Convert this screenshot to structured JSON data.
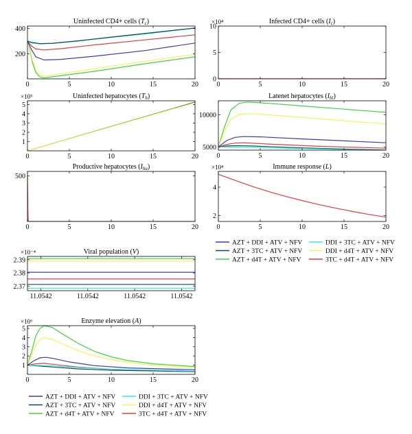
{
  "figure": {
    "legend_top": [
      {
        "label": "AZT + DDI + ATV + NFV",
        "color": "#3a3ab8"
      },
      {
        "label": "AZT + 3TC + ATV + NFV",
        "color": "#0c4b4b"
      },
      {
        "label": "AZT + d4T + ATV + NFV",
        "color": "#3ed43e"
      },
      {
        "label": "DDI + 3TC + ATV + NFV",
        "color": "#2ee8e8"
      },
      {
        "label": "DDI + d4T + ATV + NFV",
        "color": "#f4f45a"
      },
      {
        "label": "3TC + d4T + ATV + NFV",
        "color": "#e03c3c"
      }
    ],
    "legend_bottom": [
      {
        "label": "AZT + DDI + ATV + NFV",
        "color": "#3a3ab8"
      },
      {
        "label": "AZT + 3TC + ATV + NFV",
        "color": "#0c4b4b"
      },
      {
        "label": "AZT + d4T + ATV + NFV",
        "color": "#3ed43e"
      },
      {
        "label": "DDI + 3TC + ATV + NFV",
        "color": "#2ee8e8"
      },
      {
        "label": "DDI + d4T + ATV + NFV",
        "color": "#f4f45a"
      },
      {
        "label": "3TC + d4T + ATV + NFV",
        "color": "#e03c3c"
      }
    ]
  },
  "chart_data": [
    {
      "id": "tc",
      "type": "line",
      "title": "Uninfected CD4+ cells (T_c)",
      "xlim": [
        0,
        20
      ],
      "ylim": [
        0,
        420
      ],
      "xticks": [
        "0",
        "5",
        "10",
        "15",
        "20"
      ],
      "yticks": [
        {
          "v": 200,
          "label": "200"
        },
        {
          "v": 400,
          "label": "400"
        }
      ],
      "multiplier": "",
      "series": [
        {
          "color": "#2ee8e8",
          "points": [
            [
              0,
              300
            ],
            [
              0.5,
              285
            ],
            [
              1.5,
              278
            ],
            [
              3,
              282
            ],
            [
              6,
              300
            ],
            [
              10,
              330
            ],
            [
              15,
              365
            ],
            [
              20,
              403
            ]
          ]
        },
        {
          "color": "#3ed43e",
          "points": [
            [
              0,
              300
            ],
            [
              0.3,
              230
            ],
            [
              0.6,
              130
            ],
            [
              1,
              50
            ],
            [
              1.5,
              15
            ],
            [
              2,
              8
            ],
            [
              4,
              25
            ],
            [
              8,
              60
            ],
            [
              14,
              120
            ],
            [
              20,
              175
            ]
          ]
        },
        {
          "color": "#f4f45a",
          "points": [
            [
              0,
              300
            ],
            [
              0.3,
              240
            ],
            [
              0.6,
              150
            ],
            [
              1,
              70
            ],
            [
              1.5,
              30
            ],
            [
              2,
              22
            ],
            [
              4,
              40
            ],
            [
              8,
              80
            ],
            [
              14,
              140
            ],
            [
              20,
              195
            ]
          ]
        },
        {
          "color": "#e03c3c",
          "points": [
            [
              0,
              300
            ],
            [
              0.5,
              260
            ],
            [
              1,
              238
            ],
            [
              2,
              230
            ],
            [
              4,
              240
            ],
            [
              8,
              270
            ],
            [
              14,
              310
            ],
            [
              20,
              350
            ]
          ]
        },
        {
          "color": "#3a3ab8",
          "points": [
            [
              0,
              300
            ],
            [
              0.5,
              230
            ],
            [
              1,
              175
            ],
            [
              2,
              150
            ],
            [
              4,
              155
            ],
            [
              8,
              180
            ],
            [
              14,
              225
            ],
            [
              20,
              285
            ]
          ]
        },
        {
          "color": "#0c4b4b",
          "points": [
            [
              0,
              300
            ],
            [
              0.5,
              290
            ],
            [
              1.5,
              280
            ],
            [
              3,
              283
            ],
            [
              6,
              302
            ],
            [
              10,
              332
            ],
            [
              15,
              368
            ],
            [
              20,
              405
            ]
          ]
        }
      ]
    },
    {
      "id": "ic",
      "type": "line",
      "title": "Infected CD4+ cells (I_c)",
      "xlim": [
        0,
        20
      ],
      "ylim": [
        0,
        10
      ],
      "xticks": [
        "0",
        "5",
        "10",
        "15",
        "20"
      ],
      "yticks": [
        {
          "v": 0,
          "label": "0"
        },
        {
          "v": 5,
          "label": "5"
        },
        {
          "v": 10,
          "label": "10"
        }
      ],
      "multiplier": "×10⁴",
      "series": [
        {
          "color": "#e03c3c",
          "points": [
            [
              0,
              0.03
            ],
            [
              20,
              0.03
            ]
          ]
        }
      ]
    },
    {
      "id": "th",
      "type": "line",
      "title": "Uninfected hepatocytes (T_h)",
      "xlim": [
        0,
        20
      ],
      "ylim": [
        0,
        5.4
      ],
      "xticks": [
        "0",
        "5",
        "10",
        "15",
        "20"
      ],
      "yticks": [
        {
          "v": 1,
          "label": "1"
        },
        {
          "v": 2,
          "label": "2"
        },
        {
          "v": 3,
          "label": "3"
        },
        {
          "v": 4,
          "label": "4"
        },
        {
          "v": 5,
          "label": "5"
        }
      ],
      "multiplier": "×10⁵",
      "series": [
        {
          "color": "#0c4b4b",
          "points": [
            [
              0,
              0
            ],
            [
              20,
              5.25
            ]
          ]
        },
        {
          "color": "#f4f45a",
          "points": [
            [
              0,
              0
            ],
            [
              20,
              5.2
            ]
          ]
        }
      ]
    },
    {
      "id": "hl",
      "type": "line",
      "title": "Latenet hepatocytes (I_hl)",
      "xlim": [
        0,
        20
      ],
      "ylim": [
        4500,
        12200
      ],
      "xticks": [
        "0",
        "5",
        "10",
        "15",
        "20"
      ],
      "yticks": [
        {
          "v": 5000,
          "label": "5000"
        },
        {
          "v": 10000,
          "label": "10000"
        }
      ],
      "multiplier": "",
      "series": [
        {
          "color": "#3ed43e",
          "points": [
            [
              0,
              5000
            ],
            [
              0.7,
              8000
            ],
            [
              1.5,
              10800
            ],
            [
              2.5,
              11800
            ],
            [
              3.5,
              12000
            ],
            [
              6,
              11800
            ],
            [
              10,
              11400
            ],
            [
              15,
              10900
            ],
            [
              20,
              10400
            ]
          ]
        },
        {
          "color": "#f4f45a",
          "points": [
            [
              0,
              5000
            ],
            [
              0.7,
              7300
            ],
            [
              1.5,
              9300
            ],
            [
              2.5,
              10100
            ],
            [
              4,
              10200
            ],
            [
              8,
              9800
            ],
            [
              14,
              9200
            ],
            [
              20,
              8600
            ]
          ]
        },
        {
          "color": "#3a3ab8",
          "points": [
            [
              0,
              5000
            ],
            [
              1,
              6000
            ],
            [
              2,
              6500
            ],
            [
              3,
              6620
            ],
            [
              5,
              6580
            ],
            [
              10,
              6250
            ],
            [
              15,
              5950
            ],
            [
              20,
              5650
            ]
          ]
        },
        {
          "color": "#e03c3c",
          "points": [
            [
              0,
              5000
            ],
            [
              1,
              5400
            ],
            [
              2,
              5600
            ],
            [
              3,
              5650
            ],
            [
              6,
              5450
            ],
            [
              12,
              5100
            ],
            [
              20,
              4800
            ]
          ]
        },
        {
          "color": "#0c4b4b",
          "points": [
            [
              0,
              5000
            ],
            [
              1,
              5150
            ],
            [
              2,
              5200
            ],
            [
              4,
              5150
            ],
            [
              10,
              4850
            ],
            [
              20,
              4500
            ]
          ]
        },
        {
          "color": "#2ee8e8",
          "points": [
            [
              0,
              5000
            ],
            [
              1,
              5000
            ],
            [
              3,
              4950
            ],
            [
              10,
              4750
            ],
            [
              20,
              4420
            ]
          ]
        }
      ]
    },
    {
      "id": "hu",
      "type": "line",
      "title": "Productive hepatocytes (I_hu)",
      "xlim": [
        0,
        20
      ],
      "ylim": [
        0,
        550
      ],
      "xticks": [
        "0",
        "5",
        "10",
        "15",
        "20"
      ],
      "yticks": [
        {
          "v": 500,
          "label": "500"
        }
      ],
      "multiplier": "",
      "series": [
        {
          "color": "#e03c3c",
          "points": [
            [
              0,
              500
            ],
            [
              0.03,
              300
            ],
            [
              0.06,
              100
            ],
            [
              0.1,
              0
            ],
            [
              20,
              0
            ]
          ]
        }
      ]
    },
    {
      "id": "imm",
      "type": "line",
      "title": "Immune response (L)",
      "xlim": [
        0,
        20
      ],
      "ylim": [
        1.6,
        5.1
      ],
      "xticks": [
        "0",
        "5",
        "10",
        "15",
        "20"
      ],
      "yticks": [
        {
          "v": 2,
          "label": "2"
        },
        {
          "v": 4,
          "label": "4"
        }
      ],
      "multiplier": "×10⁴",
      "series": [
        {
          "color": "#e03c3c",
          "points": [
            [
              0,
              4.9
            ],
            [
              2,
              4.47
            ],
            [
              4,
              4.06
            ],
            [
              6,
              3.69
            ],
            [
              8,
              3.36
            ],
            [
              10,
              3.06
            ],
            [
              12,
              2.78
            ],
            [
              14,
              2.53
            ],
            [
              16,
              2.3
            ],
            [
              18,
              2.09
            ],
            [
              20,
              1.9
            ]
          ]
        }
      ]
    },
    {
      "id": "vir",
      "type": "line",
      "title": "Viral population (V)",
      "xlim": [
        0,
        1
      ],
      "ylim": [
        2.3665,
        2.3925
      ],
      "xticks": [
        "11.0542",
        "11.0542",
        "11.0542",
        "11.0542"
      ],
      "xtick_positions": [
        0.08,
        0.36,
        0.64,
        0.92
      ],
      "yticks": [
        {
          "v": 2.37,
          "label": "2.37"
        },
        {
          "v": 2.38,
          "label": "2.38"
        },
        {
          "v": 2.39,
          "label": "2.39"
        }
      ],
      "multiplier": "×10⁻⁴",
      "series": [
        {
          "color": "#3ed43e",
          "points": [
            [
              0,
              2.3908
            ],
            [
              1,
              2.3908
            ]
          ]
        },
        {
          "color": "#f4f45a",
          "points": [
            [
              0,
              2.3889
            ],
            [
              1,
              2.3889
            ]
          ]
        },
        {
          "color": "#3a3ab8",
          "points": [
            [
              0,
              2.3805
            ],
            [
              1,
              2.3805
            ]
          ]
        },
        {
          "color": "#e03c3c",
          "points": [
            [
              0,
              2.3754
            ],
            [
              1,
              2.3754
            ]
          ]
        },
        {
          "color": "#0c4b4b",
          "points": [
            [
              0,
              2.3713
            ],
            [
              1,
              2.3713
            ]
          ]
        },
        {
          "color": "#2ee8e8",
          "points": [
            [
              0,
              2.3684
            ],
            [
              1,
              2.3684
            ]
          ]
        }
      ]
    },
    {
      "id": "enz",
      "type": "line",
      "title": "Enzyme elevation (A)",
      "xlim": [
        0,
        20
      ],
      "ylim": [
        0,
        5.3
      ],
      "xticks": [
        "0",
        "5",
        "10",
        "15",
        "20"
      ],
      "yticks": [
        {
          "v": 1,
          "label": "1"
        },
        {
          "v": 2,
          "label": "2"
        },
        {
          "v": 3,
          "label": "3"
        },
        {
          "v": 4,
          "label": "4"
        },
        {
          "v": 5,
          "label": "5"
        }
      ],
      "multiplier": "×10⁶",
      "series": [
        {
          "color": "#3ed43e",
          "points": [
            [
              0,
              1
            ],
            [
              0.5,
              2.5
            ],
            [
              1,
              4.2
            ],
            [
              1.5,
              5
            ],
            [
              2,
              5.3
            ],
            [
              3,
              5.1
            ],
            [
              4,
              4.5
            ],
            [
              6,
              3.4
            ],
            [
              8,
              2.5
            ],
            [
              10,
              1.9
            ],
            [
              12,
              1.5
            ],
            [
              15,
              1.15
            ],
            [
              20,
              0.85
            ]
          ]
        },
        {
          "color": "#f4f45a",
          "points": [
            [
              0,
              1
            ],
            [
              0.5,
              2.1
            ],
            [
              1,
              3.2
            ],
            [
              1.5,
              3.8
            ],
            [
              2,
              4.0
            ],
            [
              3,
              3.8
            ],
            [
              4,
              3.4
            ],
            [
              6,
              2.6
            ],
            [
              8,
              2.0
            ],
            [
              10,
              1.6
            ],
            [
              12,
              1.3
            ],
            [
              15,
              1.0
            ],
            [
              20,
              0.75
            ]
          ]
        },
        {
          "color": "#3a3ab8",
          "points": [
            [
              0,
              1
            ],
            [
              0.8,
              1.5
            ],
            [
              1.5,
              1.8
            ],
            [
              2.2,
              1.85
            ],
            [
              3,
              1.75
            ],
            [
              5,
              1.35
            ],
            [
              8,
              0.95
            ],
            [
              12,
              0.7
            ],
            [
              20,
              0.5
            ]
          ]
        },
        {
          "color": "#e03c3c",
          "points": [
            [
              0,
              1
            ],
            [
              1,
              1.15
            ],
            [
              2,
              1.2
            ],
            [
              3,
              1.1
            ],
            [
              6,
              0.8
            ],
            [
              10,
              0.55
            ],
            [
              20,
              0.35
            ]
          ]
        },
        {
          "color": "#0c4b4b",
          "points": [
            [
              0,
              1
            ],
            [
              1,
              0.93
            ],
            [
              3,
              0.8
            ],
            [
              6,
              0.6
            ],
            [
              10,
              0.45
            ],
            [
              20,
              0.3
            ]
          ]
        },
        {
          "color": "#2ee8e8",
          "points": [
            [
              0,
              1
            ],
            [
              1,
              0.98
            ],
            [
              3,
              0.92
            ],
            [
              6,
              0.75
            ],
            [
              10,
              0.55
            ],
            [
              20,
              0.35
            ]
          ]
        }
      ]
    }
  ]
}
